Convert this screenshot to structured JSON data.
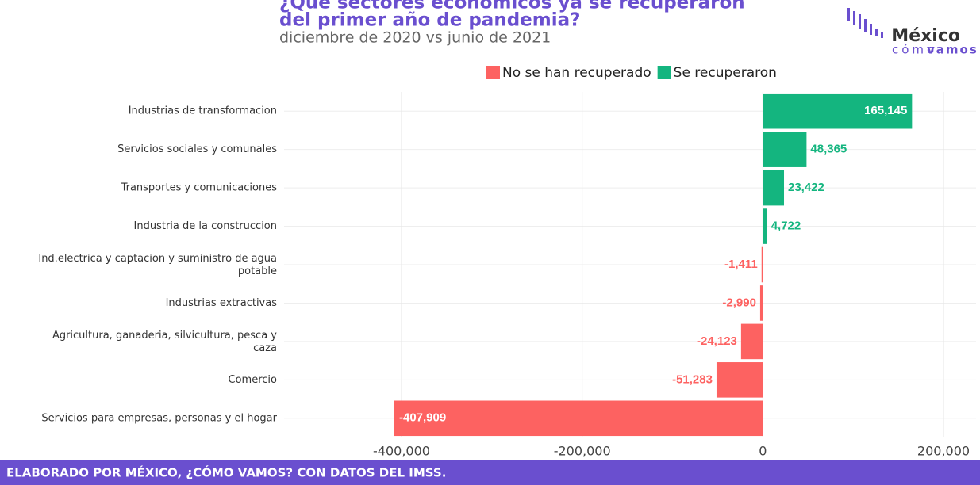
{
  "chart_data": {
    "type": "bar",
    "orientation": "horizontal",
    "title_lines": [
      "¿Qué sectores económicos ya se recuperaron",
      "del primer año de pandemia?"
    ],
    "subtitle": "diciembre de 2020 vs junio de 2021",
    "categories": [
      "Industrias de transformacion",
      "Servicios sociales y comunales",
      "Transportes y comunicaciones",
      "Industria de la construccion",
      "Ind.electrica y captacion y suministro de agua potable",
      "Industrias extractivas",
      "Agricultura, ganaderia, silvicultura, pesca y caza",
      "Comercio",
      "Servicios para empresas, personas y el hogar"
    ],
    "series": [
      {
        "name": "No se han recuperado",
        "color": "#fd6261",
        "values": [
          null,
          null,
          null,
          null,
          -1411,
          -2990,
          -24123,
          -51283,
          -407909
        ],
        "value_labels": [
          null,
          null,
          null,
          null,
          "-1,411",
          "-2,990",
          "-24,123",
          "-51,283",
          "-407,909"
        ]
      },
      {
        "name": "Se recuperaron",
        "color": "#14b57f",
        "values": [
          165145,
          48365,
          23422,
          4722,
          null,
          null,
          null,
          null,
          null
        ],
        "value_labels": [
          "165,145",
          "48,365",
          "23,422",
          "4,722",
          null,
          null,
          null,
          null,
          null
        ]
      }
    ],
    "xlim": [
      -530000,
      236000
    ],
    "xticks": [
      {
        "value": -400000,
        "label": "-400,000"
      },
      {
        "value": -200000,
        "label": "-200,000"
      },
      0,
      {
        "value": 200000,
        "label": "200,000"
      }
    ],
    "grid": true,
    "legend": "top"
  },
  "logo": {
    "line1": "México",
    "line2a": "cómo",
    "line2b": "vamos"
  },
  "footer": "ELABORADO POR MÉXICO, ¿CÓMO VAMOS? CON DATOS DEL IMSS."
}
